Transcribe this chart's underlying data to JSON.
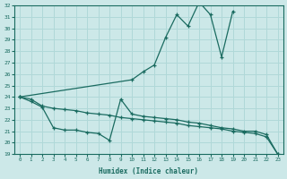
{
  "xlabel": "Humidex (Indice chaleur)",
  "bg_color": "#cce8e8",
  "grid_color": "#b0d8d8",
  "line_color": "#1a6b60",
  "xlim": [
    -0.5,
    23.5
  ],
  "ylim": [
    19,
    32
  ],
  "yticks": [
    19,
    20,
    21,
    22,
    23,
    24,
    25,
    26,
    27,
    28,
    29,
    30,
    31,
    32
  ],
  "xticks": [
    0,
    1,
    2,
    3,
    4,
    5,
    6,
    7,
    8,
    9,
    10,
    11,
    12,
    13,
    14,
    15,
    16,
    17,
    18,
    19,
    20,
    21,
    22,
    23
  ],
  "line1_x": [
    0,
    1,
    2,
    3,
    4,
    5,
    6,
    7,
    8,
    9,
    10,
    11,
    12,
    13,
    14,
    15,
    16,
    17,
    18,
    19,
    20,
    21,
    22,
    23
  ],
  "line1_y": [
    24.0,
    23.8,
    23.2,
    23.0,
    22.9,
    22.8,
    22.6,
    22.5,
    22.4,
    22.2,
    22.1,
    22.0,
    21.9,
    21.8,
    21.7,
    21.5,
    21.4,
    21.3,
    21.2,
    21.0,
    20.9,
    20.8,
    20.5,
    19.0
  ],
  "line2_x": [
    0,
    1,
    2,
    3,
    4,
    5,
    6,
    7,
    8,
    9,
    10,
    11,
    12,
    13,
    14,
    15,
    16,
    17,
    18,
    19,
    20,
    21,
    22,
    23
  ],
  "line2_y": [
    24.0,
    23.6,
    23.1,
    21.3,
    21.1,
    21.1,
    20.9,
    20.8,
    20.2,
    23.8,
    22.5,
    22.3,
    22.2,
    22.1,
    22.0,
    21.8,
    21.7,
    21.5,
    21.3,
    21.2,
    21.0,
    21.0,
    20.7,
    19.0
  ],
  "line3_x": [
    0,
    1,
    2,
    3,
    4,
    5,
    6,
    7,
    8,
    9,
    10,
    11,
    12,
    13,
    14,
    15,
    16,
    17,
    18,
    19,
    20,
    21,
    22,
    23
  ],
  "line3_y": [
    24.0,
    null,
    null,
    null,
    null,
    null,
    null,
    null,
    null,
    null,
    25.5,
    26.2,
    26.8,
    29.2,
    31.2,
    30.2,
    32.3,
    31.2,
    27.5,
    31.5,
    null,
    null,
    null,
    null
  ]
}
